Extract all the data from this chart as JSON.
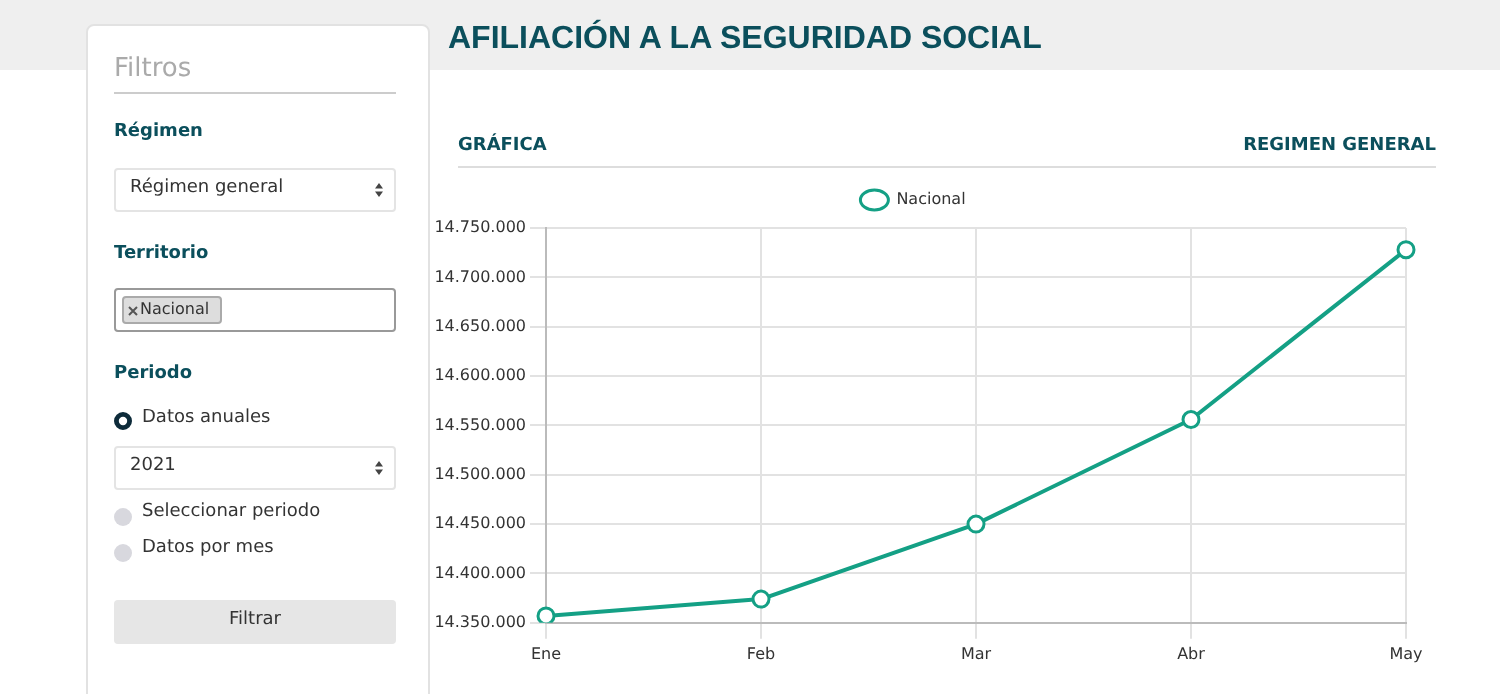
{
  "chart_data": {
    "type": "line",
    "title": "AFILIACIÓN A LA SEGURIDAD SOCIAL",
    "subtitle": "GRÁFICA",
    "annotations": [
      "REGIMEN GENERAL",
      "Filtros",
      "Régimen",
      "Régimen general",
      "Territorio",
      "Nacional",
      "Periodo",
      "Datos anuales",
      "2021",
      "Seleccionar periodo",
      "Datos por mes",
      "Filtrar"
    ],
    "categories": [
      "Ene",
      "Feb",
      "Mar",
      "Abr",
      "May"
    ],
    "series": [
      {
        "name": "Nacional",
        "color": "#14a085",
        "values": [
          14357000,
          14374000,
          14450000,
          14556000,
          14728000
        ]
      }
    ],
    "ylim": [
      14350000,
      14750000
    ],
    "yticks": [
      {
        "value": 14350000,
        "label": "14.350.000"
      },
      {
        "value": 14400000,
        "label": "14.400.000"
      },
      {
        "value": 14450000,
        "label": "14.450.000"
      },
      {
        "value": 14500000,
        "label": "14.500.000"
      },
      {
        "value": 14550000,
        "label": "14.550.000"
      },
      {
        "value": 14600000,
        "label": "14.600.000"
      },
      {
        "value": 14650000,
        "label": "14.650.000"
      },
      {
        "value": 14700000,
        "label": "14.700.000"
      },
      {
        "value": 14750000,
        "label": "14.750.000"
      }
    ],
    "grid": true,
    "legend": "top",
    "marker": "circle",
    "line_style": "solid"
  }
}
